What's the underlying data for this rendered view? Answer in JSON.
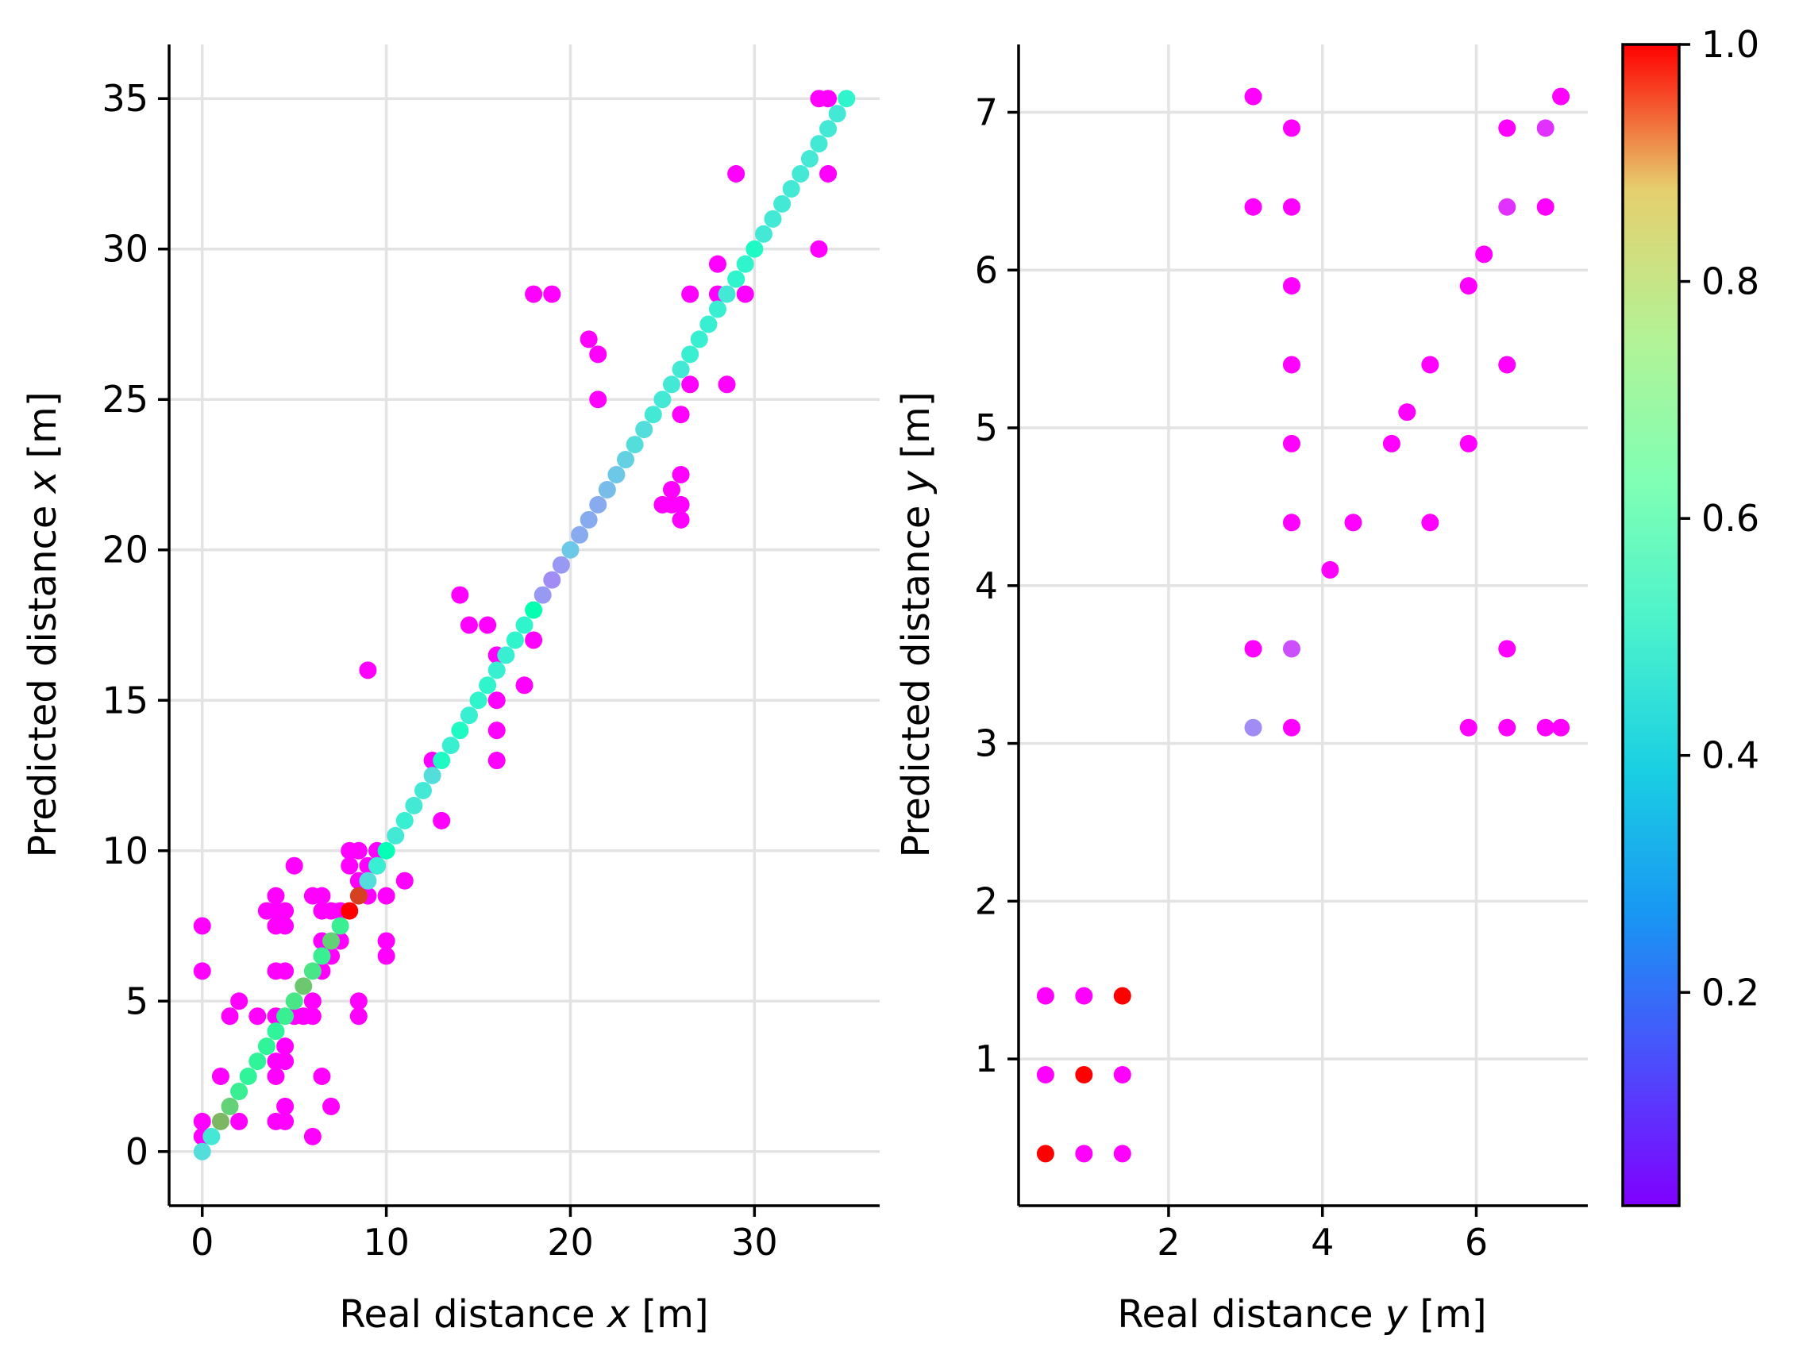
{
  "chart_data": [
    {
      "type": "scatter",
      "panel": "left",
      "xlabel_prefix": "Real distance ",
      "xlabel_var": "x",
      "xlabel_suffix": " [m]",
      "ylabel_prefix": "Predicted distance ",
      "ylabel_var": "x",
      "ylabel_suffix": " [m]",
      "xlim": [
        -1.8,
        36.8
      ],
      "ylim": [
        -1.8,
        36.8
      ],
      "xticks": [
        0,
        10,
        20,
        30
      ],
      "yticks": [
        0,
        5,
        10,
        15,
        20,
        25,
        30,
        35
      ],
      "grid": true,
      "points": [
        [
          0,
          0,
          0.35
        ],
        [
          0.5,
          0.5,
          0.38
        ],
        [
          1,
          1,
          0.75
        ],
        [
          1.5,
          1.5,
          0.7
        ],
        [
          2,
          2,
          0.62
        ],
        [
          2.5,
          2.5,
          0.6
        ],
        [
          3,
          3,
          0.6
        ],
        [
          3.5,
          3.5,
          0.6
        ],
        [
          4,
          4,
          0.6
        ],
        [
          4.5,
          4.5,
          0.62
        ],
        [
          5,
          5,
          0.65
        ],
        [
          5.5,
          5.5,
          0.72
        ],
        [
          6,
          6,
          0.65
        ],
        [
          6.5,
          6.5,
          0.62
        ],
        [
          7,
          7,
          0.7
        ],
        [
          7.5,
          7.5,
          0.62
        ],
        [
          8,
          8,
          1.0
        ],
        [
          8.5,
          8.5,
          0.92
        ],
        [
          9,
          9,
          0.35
        ],
        [
          9.5,
          9.5,
          0.4
        ],
        [
          10,
          10,
          0.5
        ],
        [
          10.5,
          10.5,
          0.38
        ],
        [
          11,
          11,
          0.4
        ],
        [
          11.5,
          11.5,
          0.38
        ],
        [
          12,
          12,
          0.38
        ],
        [
          12.5,
          12.5,
          0.35
        ],
        [
          13,
          13,
          0.45
        ],
        [
          13.5,
          13.5,
          0.4
        ],
        [
          14,
          14,
          0.45
        ],
        [
          14.5,
          14.5,
          0.4
        ],
        [
          15,
          15,
          0.42
        ],
        [
          15.5,
          15.5,
          0.42
        ],
        [
          16,
          16,
          0.4
        ],
        [
          16.5,
          16.5,
          0.4
        ],
        [
          17,
          17,
          0.42
        ],
        [
          17.5,
          17.5,
          0.42
        ],
        [
          18,
          18,
          0.52
        ],
        [
          18.5,
          18.5,
          0.22
        ],
        [
          19,
          19,
          0.2
        ],
        [
          19.5,
          19.5,
          0.22
        ],
        [
          20,
          20,
          0.3
        ],
        [
          20.5,
          20.5,
          0.25
        ],
        [
          21,
          21,
          0.25
        ],
        [
          21.5,
          21.5,
          0.25
        ],
        [
          22,
          22,
          0.28
        ],
        [
          22.5,
          22.5,
          0.3
        ],
        [
          23,
          23,
          0.32
        ],
        [
          23.5,
          23.5,
          0.35
        ],
        [
          24,
          24,
          0.35
        ],
        [
          24.5,
          24.5,
          0.38
        ],
        [
          25,
          25,
          0.38
        ],
        [
          25.5,
          25.5,
          0.38
        ],
        [
          26,
          26,
          0.38
        ],
        [
          26.5,
          26.5,
          0.4
        ],
        [
          27,
          27,
          0.4
        ],
        [
          27.5,
          27.5,
          0.4
        ],
        [
          28,
          28,
          0.4
        ],
        [
          28.5,
          28.5,
          0.38
        ],
        [
          29,
          29,
          0.42
        ],
        [
          29.5,
          29.5,
          0.42
        ],
        [
          30,
          30,
          0.45
        ],
        [
          30.5,
          30.5,
          0.38
        ],
        [
          31,
          31,
          0.38
        ],
        [
          31.5,
          31.5,
          0.38
        ],
        [
          32,
          32,
          0.38
        ],
        [
          32.5,
          32.5,
          0.38
        ],
        [
          33,
          33,
          0.38
        ],
        [
          33.5,
          33.5,
          0.38
        ],
        [
          34,
          34,
          0.38
        ],
        [
          34.5,
          34.5,
          0.38
        ],
        [
          35,
          35,
          0.42
        ],
        [
          0,
          7.5,
          0
        ],
        [
          0,
          6,
          0
        ],
        [
          0,
          1,
          0
        ],
        [
          0,
          0.5,
          0
        ],
        [
          1,
          2.5,
          0
        ],
        [
          1.5,
          4.5,
          0
        ],
        [
          2,
          5,
          0
        ],
        [
          2,
          1,
          0
        ],
        [
          3,
          4.5,
          0
        ],
        [
          3.5,
          8,
          0
        ],
        [
          4,
          8.5,
          0
        ],
        [
          4,
          8,
          0
        ],
        [
          4,
          7.5,
          0
        ],
        [
          4,
          6,
          0
        ],
        [
          4,
          4.5,
          0
        ],
        [
          4,
          3,
          0
        ],
        [
          4,
          2.5,
          0
        ],
        [
          4,
          1,
          0
        ],
        [
          4.5,
          8,
          0
        ],
        [
          4.5,
          7.5,
          0
        ],
        [
          4.5,
          6,
          0
        ],
        [
          4.5,
          3.5,
          0
        ],
        [
          4.5,
          3,
          0
        ],
        [
          4.5,
          1.5,
          0
        ],
        [
          4.5,
          1,
          0
        ],
        [
          5,
          9.5,
          0
        ],
        [
          5,
          4.5,
          0
        ],
        [
          5.5,
          4.5,
          0
        ],
        [
          6,
          8.5,
          0
        ],
        [
          6,
          5,
          0
        ],
        [
          6,
          4.5,
          0
        ],
        [
          6,
          0.5,
          0
        ],
        [
          6.5,
          8.5,
          0
        ],
        [
          6.5,
          8,
          0
        ],
        [
          6.5,
          7,
          0
        ],
        [
          6.5,
          6,
          0
        ],
        [
          6.5,
          2.5,
          0
        ],
        [
          7,
          8,
          0
        ],
        [
          7,
          6.5,
          0
        ],
        [
          7,
          1.5,
          0
        ],
        [
          7.5,
          8,
          0
        ],
        [
          7.5,
          7,
          0
        ],
        [
          8,
          10,
          0
        ],
        [
          8,
          9.5,
          0
        ],
        [
          8.5,
          10,
          0
        ],
        [
          8.5,
          9,
          0
        ],
        [
          8.5,
          5,
          0
        ],
        [
          8.5,
          4.5,
          0
        ],
        [
          9,
          16,
          0
        ],
        [
          9,
          9.5,
          0
        ],
        [
          9,
          8.5,
          0
        ],
        [
          9.5,
          10,
          0
        ],
        [
          9.5,
          9.5,
          0
        ],
        [
          10,
          8.5,
          0
        ],
        [
          10,
          7,
          0
        ],
        [
          10,
          6.5,
          0
        ],
        [
          11,
          9,
          0
        ],
        [
          12.5,
          13,
          0
        ],
        [
          13,
          11,
          0
        ],
        [
          14,
          18.5,
          0
        ],
        [
          14.5,
          17.5,
          0
        ],
        [
          15.5,
          17.5,
          0
        ],
        [
          16,
          16.5,
          0
        ],
        [
          16,
          15,
          0
        ],
        [
          16,
          14,
          0
        ],
        [
          16,
          13,
          0
        ],
        [
          17.5,
          15.5,
          0
        ],
        [
          18,
          28.5,
          0
        ],
        [
          18,
          17,
          0
        ],
        [
          19,
          28.5,
          0
        ],
        [
          21,
          27,
          0
        ],
        [
          21.5,
          26.5,
          0
        ],
        [
          21.5,
          25,
          0
        ],
        [
          25,
          21.5,
          0
        ],
        [
          25.5,
          22,
          0
        ],
        [
          25.5,
          21.5,
          0
        ],
        [
          26,
          24.5,
          0
        ],
        [
          26,
          22.5,
          0
        ],
        [
          26,
          21.5,
          0
        ],
        [
          26,
          21,
          0
        ],
        [
          26.5,
          28.5,
          0
        ],
        [
          26.5,
          25.5,
          0
        ],
        [
          28,
          29.5,
          0
        ],
        [
          28,
          28.5,
          0
        ],
        [
          28.5,
          25.5,
          0
        ],
        [
          29,
          32.5,
          0
        ],
        [
          29.5,
          28.5,
          0
        ],
        [
          33.5,
          35,
          0
        ],
        [
          33.5,
          30,
          0
        ],
        [
          34,
          35,
          0
        ],
        [
          34,
          32.5,
          0
        ]
      ]
    },
    {
      "type": "scatter",
      "panel": "right",
      "xlabel_prefix": "Real distance ",
      "xlabel_var": "y",
      "xlabel_suffix": " [m]",
      "ylabel_prefix": "Predicted distance ",
      "ylabel_var": "y",
      "ylabel_suffix": " [m]",
      "xlim": [
        0.05,
        7.45
      ],
      "ylim": [
        0.07,
        7.43
      ],
      "xticks": [
        2,
        4,
        6
      ],
      "yticks": [
        1,
        2,
        3,
        4,
        5,
        6,
        7
      ],
      "grid": true,
      "points": [
        [
          0.4,
          1.4,
          0
        ],
        [
          0.9,
          1.4,
          0
        ],
        [
          1.4,
          1.4,
          1.0
        ],
        [
          0.4,
          0.9,
          0
        ],
        [
          0.9,
          0.9,
          1.0
        ],
        [
          1.4,
          0.9,
          0
        ],
        [
          0.4,
          0.4,
          1.0
        ],
        [
          0.9,
          0.4,
          0
        ],
        [
          1.4,
          0.4,
          0
        ],
        [
          3.1,
          7.1,
          0
        ],
        [
          3.6,
          6.9,
          0
        ],
        [
          3.1,
          6.4,
          0
        ],
        [
          3.6,
          6.4,
          0
        ],
        [
          3.6,
          5.9,
          0
        ],
        [
          3.6,
          5.4,
          0
        ],
        [
          3.6,
          4.9,
          0
        ],
        [
          3.6,
          4.4,
          0
        ],
        [
          4.4,
          4.4,
          0
        ],
        [
          4.1,
          4.1,
          0
        ],
        [
          4.9,
          4.9,
          0
        ],
        [
          5.1,
          5.1,
          0
        ],
        [
          5.4,
          5.4,
          0
        ],
        [
          5.4,
          4.4,
          0
        ],
        [
          5.9,
          5.9,
          0
        ],
        [
          5.9,
          4.9,
          0
        ],
        [
          6.1,
          6.1,
          0
        ],
        [
          6.4,
          6.9,
          0
        ],
        [
          6.9,
          6.9,
          0.08
        ],
        [
          6.4,
          6.4,
          0.08
        ],
        [
          6.9,
          6.4,
          0
        ],
        [
          7.1,
          7.1,
          0
        ],
        [
          6.4,
          5.4,
          0
        ],
        [
          6.4,
          3.6,
          0
        ],
        [
          3.1,
          3.6,
          0
        ],
        [
          3.6,
          3.6,
          0.12
        ],
        [
          3.1,
          3.1,
          0.2
        ],
        [
          3.6,
          3.1,
          0
        ],
        [
          5.9,
          3.1,
          0
        ],
        [
          6.4,
          3.1,
          0
        ],
        [
          6.9,
          3.1,
          0
        ],
        [
          7.1,
          3.1,
          0
        ]
      ]
    }
  ],
  "colorbar": {
    "colormap": "rainbow",
    "range": [
      0.02,
      1.0
    ],
    "ticks": [
      "0.2",
      "0.4",
      "0.6",
      "0.8",
      "1.0"
    ],
    "tick_values": [
      0.2,
      0.4,
      0.6,
      0.8,
      1.0
    ]
  }
}
